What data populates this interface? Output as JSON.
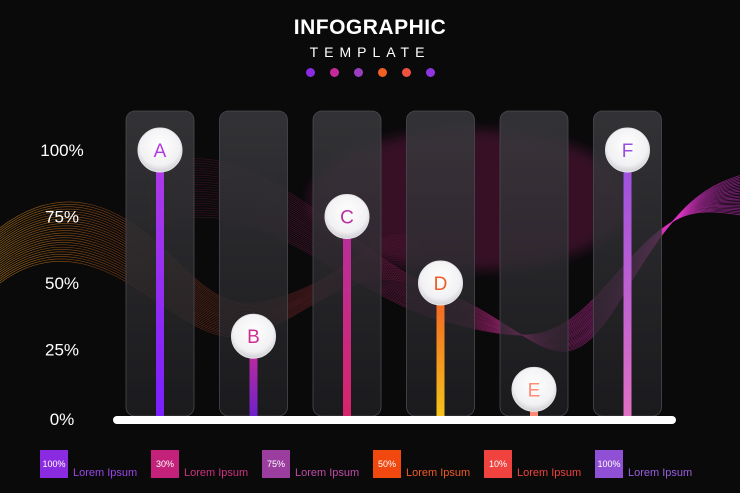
{
  "header": {
    "title": "INFOGRAPHIC",
    "subtitle": "TEMPLATE",
    "dots": [
      "#8a2be2",
      "#c42a9a",
      "#9a3dc0",
      "#f25f22",
      "#f0523f",
      "#8f35e0"
    ]
  },
  "chart_data": {
    "type": "bar",
    "categories": [
      "A",
      "B",
      "C",
      "D",
      "E",
      "F"
    ],
    "values": [
      100,
      30,
      75,
      50,
      10,
      100
    ],
    "ylim": [
      0,
      100
    ],
    "y_ticks": [
      "0%",
      "25%",
      "50%",
      "75%",
      "100%"
    ],
    "grid": false,
    "colors": [
      [
        "#7a1fff",
        "#b13ce6"
      ],
      [
        "#6e22c9",
        "#d22c91"
      ],
      [
        "#d6246b",
        "#b6309f"
      ],
      [
        "#f5c21a",
        "#f25a25"
      ],
      [
        "#ff8a75",
        "#ff8a75"
      ],
      [
        "#e070c4",
        "#9a4fe0"
      ]
    ]
  },
  "legend": [
    {
      "value": "100%",
      "label": "Lorem Ipsum",
      "color": "#8a2be2",
      "text_color": "#9a45e8"
    },
    {
      "value": "30%",
      "label": "Lorem Ipsum",
      "color": "#c4217a",
      "text_color": "#d0307f"
    },
    {
      "value": "75%",
      "label": "Lorem Ipsum",
      "color": "#9a3d9f",
      "text_color": "#c04aa8"
    },
    {
      "value": "50%",
      "label": "Lorem Ipsum",
      "color": "#f0480f",
      "text_color": "#f25a25"
    },
    {
      "value": "10%",
      "label": "Lorem Ipsum",
      "color": "#f0433f",
      "text_color": "#f0433f"
    },
    {
      "value": "100%",
      "label": "Lorem Ipsum",
      "color": "#9050d6",
      "text_color": "#9a5fe0"
    }
  ]
}
